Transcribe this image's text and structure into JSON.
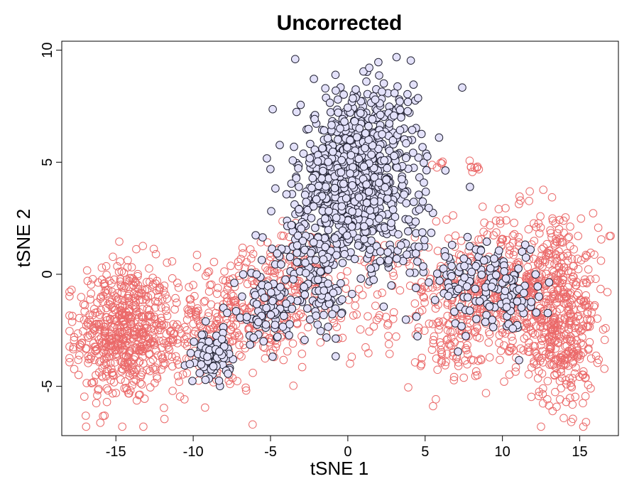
{
  "chart_data": {
    "type": "scatter",
    "title": "Uncorrected",
    "xlabel": "tSNE 1",
    "ylabel": "tSNE 2",
    "xlim": [
      -18.5,
      17.5
    ],
    "ylim": [
      -7.2,
      10.4
    ],
    "xticks": [
      "-15",
      "-10",
      "-5",
      "0",
      "5",
      "10",
      "15"
    ],
    "xtick_values": [
      -15,
      -10,
      -5,
      0,
      5,
      10,
      15
    ],
    "yticks": [
      "-5",
      "0",
      "5",
      "10"
    ],
    "ytick_values": [
      -5,
      0,
      5,
      10
    ],
    "grid": false,
    "series": [
      {
        "marker": "open-circle",
        "color": "#EB6A6A",
        "clusters": [
          {
            "cx": -14.6,
            "cy": -2.6,
            "sx": 1.5,
            "sy": 1.6,
            "n": 520
          },
          {
            "cx": -11.2,
            "cy": -2.6,
            "sx": 1.3,
            "sy": 1.0,
            "n": 110
          },
          {
            "cx": -8.2,
            "cy": -2.5,
            "sx": 1.5,
            "sy": 1.4,
            "n": 160
          },
          {
            "cx": -5.0,
            "cy": -1.3,
            "sx": 1.6,
            "sy": 1.4,
            "n": 170
          },
          {
            "cx": -2.8,
            "cy": 0.3,
            "sx": 1.2,
            "sy": 1.0,
            "n": 90
          },
          {
            "cx": 1.6,
            "cy": -1.0,
            "sx": 2.4,
            "sy": 1.4,
            "n": 90
          },
          {
            "cx": 7.2,
            "cy": -0.6,
            "sx": 1.4,
            "sy": 1.4,
            "n": 180
          },
          {
            "cx": 10.8,
            "cy": -0.8,
            "sx": 1.6,
            "sy": 1.7,
            "n": 320
          },
          {
            "cx": 13.8,
            "cy": -2.9,
            "sx": 1.1,
            "sy": 1.5,
            "n": 280
          },
          {
            "cx": 14.0,
            "cy": 0.2,
            "sx": 1.2,
            "sy": 1.3,
            "n": 150
          },
          {
            "cx": 6.5,
            "cy": -3.5,
            "sx": 1.5,
            "sy": 0.9,
            "n": 50
          },
          {
            "cx": 8.1,
            "cy": 4.8,
            "sx": 0.25,
            "sy": 0.15,
            "n": 8
          },
          {
            "cx": 5.8,
            "cy": 4.9,
            "sx": 0.25,
            "sy": 0.2,
            "n": 5
          },
          {
            "cx": 10.0,
            "cy": 2.6,
            "sx": 0.2,
            "sy": 0.2,
            "n": 4
          }
        ]
      },
      {
        "marker": "filled-circle",
        "fill": "#E3E1FA",
        "edge": "#222233",
        "clusters": [
          {
            "cx": 0.7,
            "cy": 4.3,
            "sx": 1.85,
            "sy": 1.85,
            "n": 820
          },
          {
            "cx": -1.5,
            "cy": 2.5,
            "sx": 1.2,
            "sy": 1.4,
            "n": 120
          },
          {
            "cx": -3.0,
            "cy": 0.5,
            "sx": 1.0,
            "sy": 1.0,
            "n": 55
          },
          {
            "cx": -5.3,
            "cy": -1.6,
            "sx": 1.1,
            "sy": 0.8,
            "n": 80
          },
          {
            "cx": -8.7,
            "cy": -3.6,
            "sx": 0.55,
            "sy": 0.5,
            "n": 90
          },
          {
            "cx": -1.4,
            "cy": -1.2,
            "sx": 0.6,
            "sy": 0.7,
            "n": 35
          },
          {
            "cx": 7.6,
            "cy": -0.3,
            "sx": 1.3,
            "sy": 1.0,
            "n": 90
          },
          {
            "cx": 10.4,
            "cy": -0.6,
            "sx": 1.0,
            "sy": 1.0,
            "n": 70
          },
          {
            "cx": 4.3,
            "cy": 1.2,
            "sx": 0.8,
            "sy": 0.8,
            "n": 25
          },
          {
            "cx": 3.5,
            "cy": 7.2,
            "sx": 0.8,
            "sy": 0.6,
            "n": 18
          }
        ],
        "points": [
          {
            "x": -3.4,
            "y": 9.6
          },
          {
            "x": 5.9,
            "y": 6.1
          },
          {
            "x": 7.9,
            "y": 3.9
          },
          {
            "x": -0.8,
            "y": 8.9
          },
          {
            "x": 1.2,
            "y": 8.6
          }
        ]
      }
    ]
  }
}
